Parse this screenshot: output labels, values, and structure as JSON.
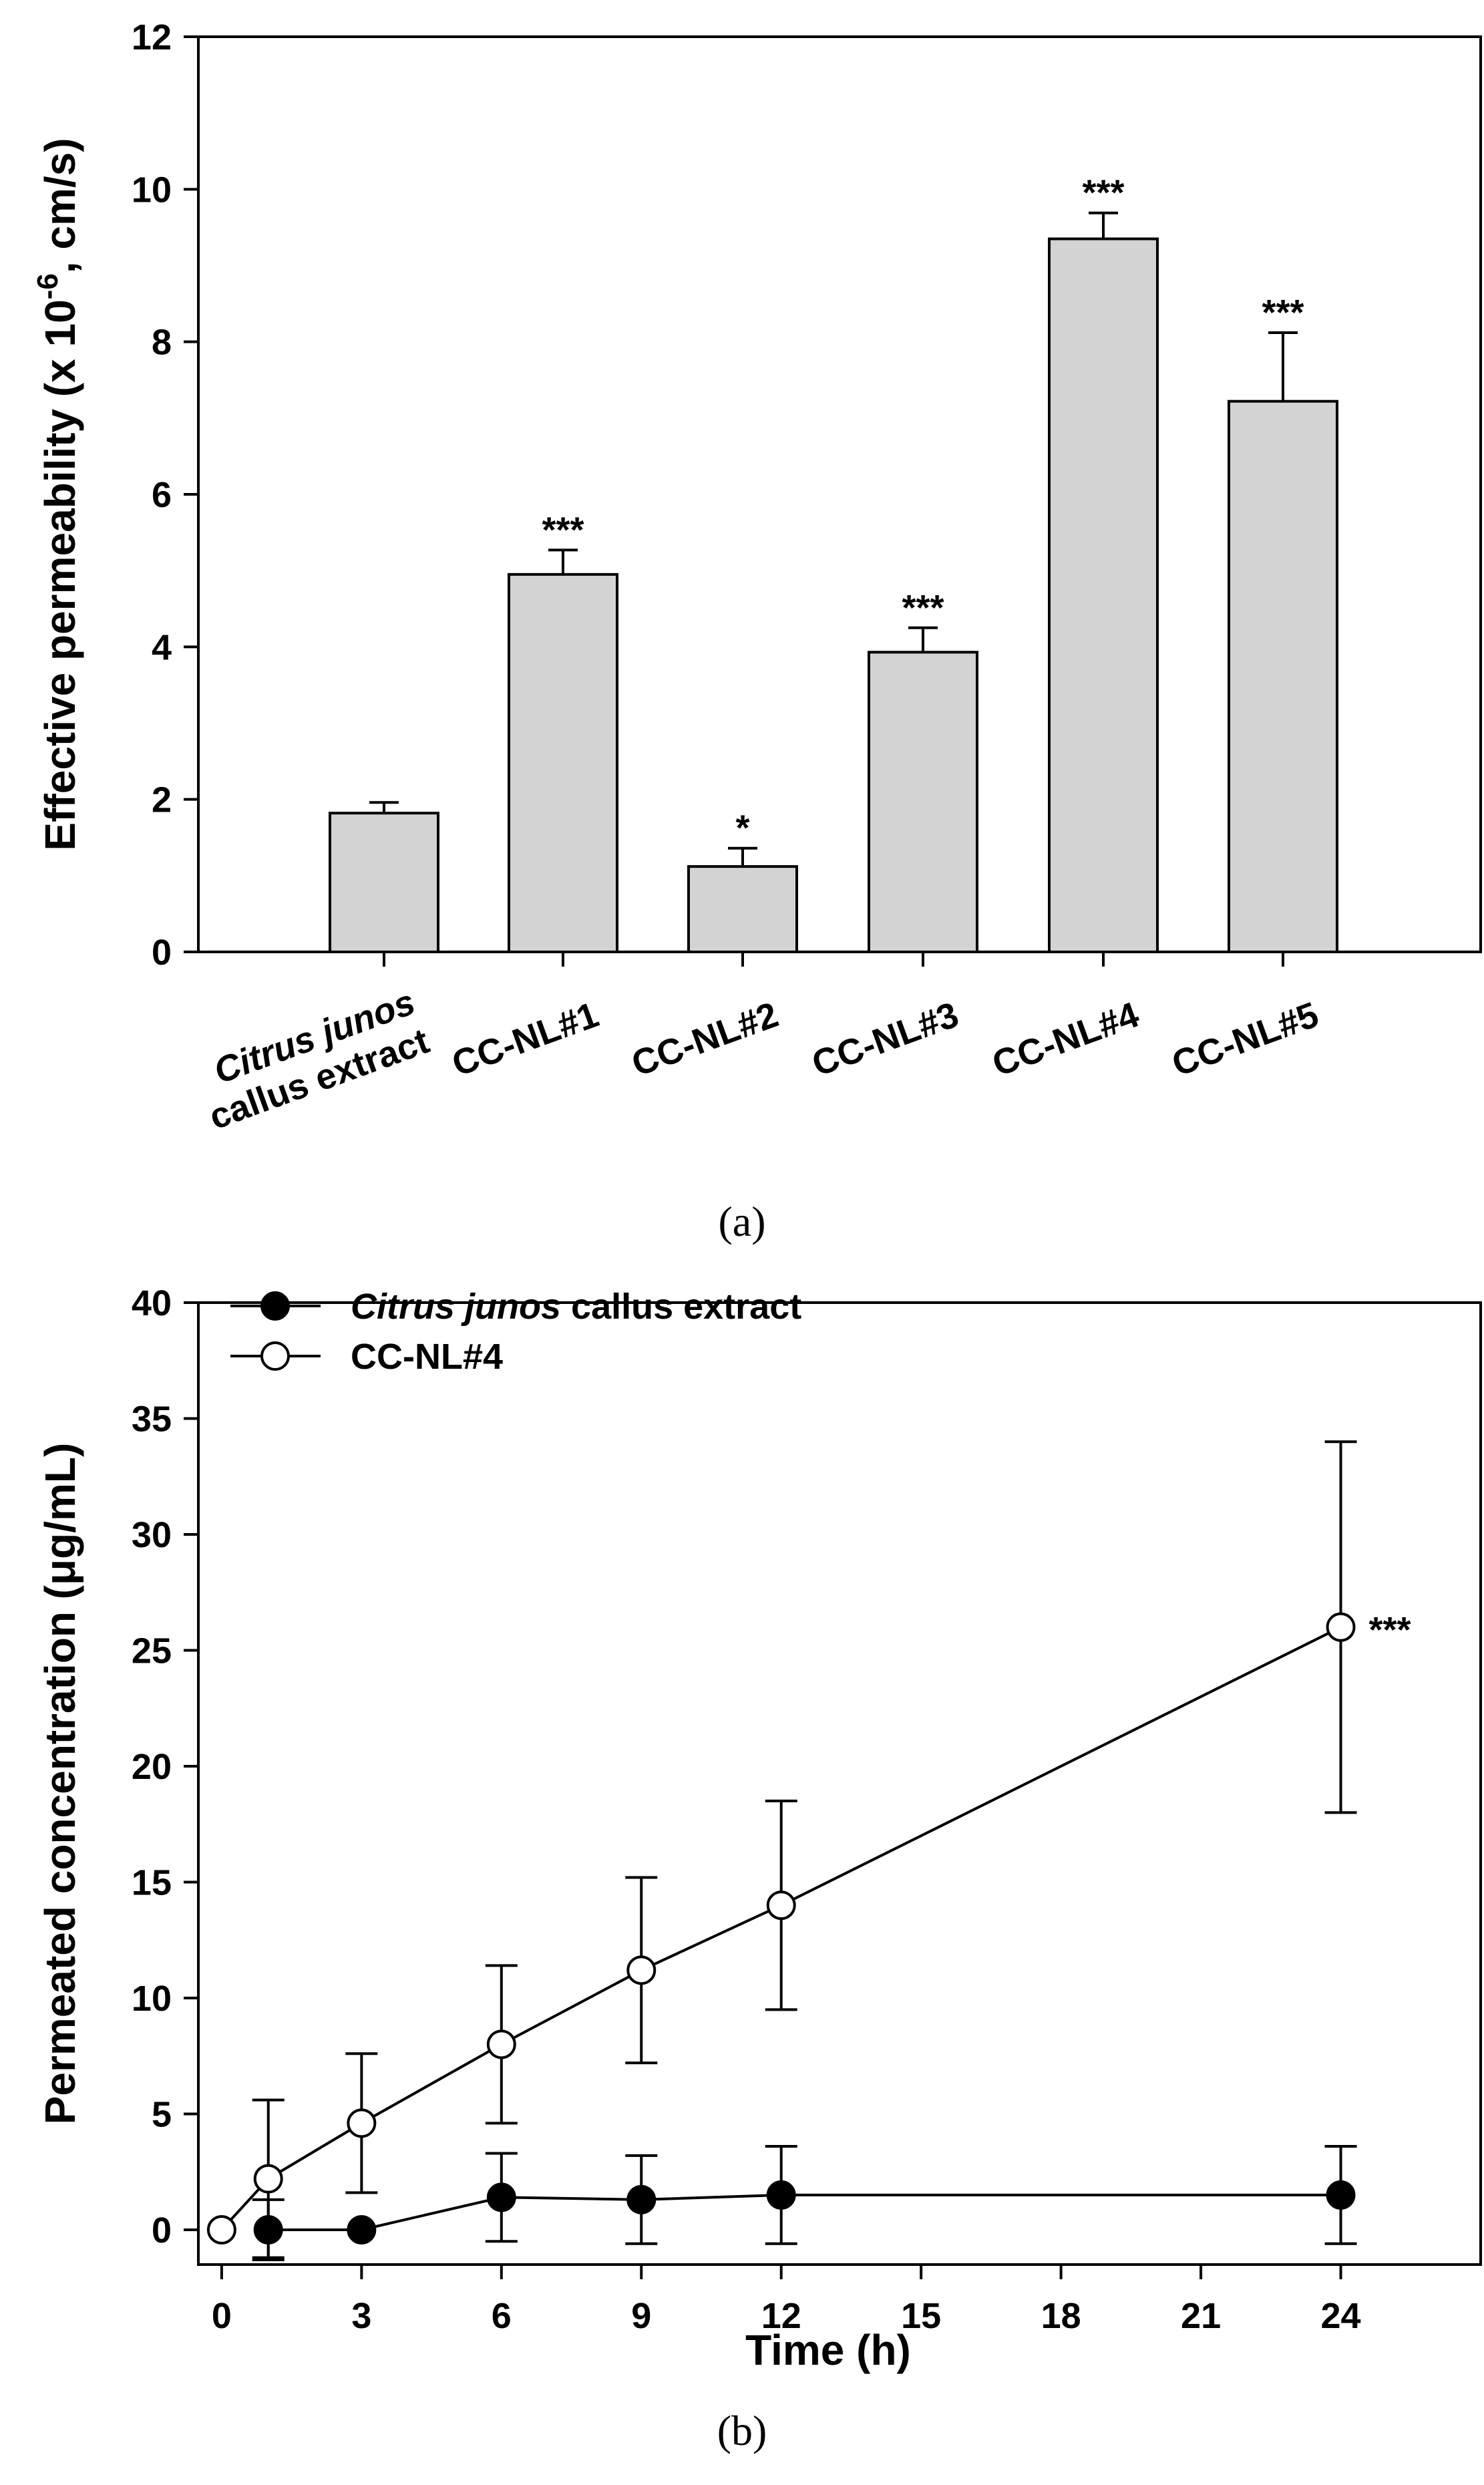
{
  "chart_data": [
    {
      "type": "bar",
      "panel_label": "(a)",
      "ylabel": "Effective permeability (x 10",
      "ylabel_sup": "-6",
      "ylabel_suffix": ", cm/s)",
      "ylim": [
        0,
        12
      ],
      "yticks": [
        "0",
        "2",
        "4",
        "6",
        "8",
        "10",
        "12"
      ],
      "categories": [
        {
          "italic": "Citrus junos",
          "line2": "callus extract"
        },
        {
          "label": "CC-NL#1"
        },
        {
          "label": "CC-NL#2"
        },
        {
          "label": "CC-NL#3"
        },
        {
          "label": "CC-NL#4"
        },
        {
          "label": "CC-NL#5"
        }
      ],
      "values": [
        1.82,
        4.95,
        1.12,
        3.93,
        9.35,
        7.22
      ],
      "errors": [
        0.14,
        0.32,
        0.24,
        0.32,
        0.34,
        0.9
      ],
      "significance": [
        "",
        "***",
        "*",
        "***",
        "***",
        "***"
      ]
    },
    {
      "type": "line",
      "panel_label": "(b)",
      "xlabel": "Time (h)",
      "ylabel": "Permeated concentration (μg/mL)",
      "xlim": [
        -0.5,
        27
      ],
      "ylim": [
        -1.5,
        40
      ],
      "xticks": [
        "0",
        "3",
        "6",
        "9",
        "12",
        "15",
        "18",
        "21",
        "24"
      ],
      "yticks": [
        "0",
        "5",
        "10",
        "15",
        "20",
        "25",
        "30",
        "35",
        "40"
      ],
      "series": [
        {
          "name": "callus extract",
          "name_italic": "Citrus junos",
          "marker": "filled",
          "x": [
            1,
            3,
            6,
            9,
            12,
            24
          ],
          "y": [
            0,
            0,
            1.4,
            1.3,
            1.5,
            1.5
          ],
          "errors": [
            1.3,
            0,
            1.9,
            1.9,
            2.1,
            2.1
          ]
        },
        {
          "name": "CC-NL#4",
          "marker": "open",
          "x": [
            0,
            1,
            3,
            6,
            9,
            12,
            24
          ],
          "y": [
            0,
            2.2,
            4.6,
            8.0,
            11.2,
            14.0,
            26.0
          ],
          "errors": [
            0,
            3.4,
            3.0,
            3.4,
            4.0,
            4.5,
            8.0
          ]
        }
      ],
      "annotation": "***"
    }
  ]
}
